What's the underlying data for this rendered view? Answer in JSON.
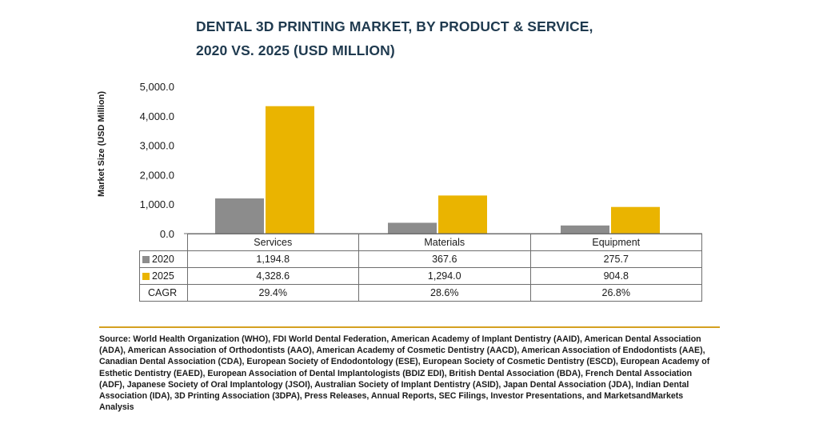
{
  "title_line1": "DENTAL 3D PRINTING MARKET, BY PRODUCT & SERVICE,",
  "title_line2": "2020 VS. 2025 (USD MILLION)",
  "colors": {
    "s2020": "#8c8c8c",
    "s2025": "#eab400"
  },
  "chart_data": {
    "type": "bar",
    "title": "DENTAL 3D PRINTING MARKET, BY PRODUCT & SERVICE, 2020 VS. 2025 (USD MILLION)",
    "ylabel": "Market Size (USD Million)",
    "xlabel": "",
    "categories": [
      "Services",
      "Materials",
      "Equipment"
    ],
    "series": [
      {
        "name": "2020",
        "values": [
          1194.8,
          367.6,
          275.7
        ]
      },
      {
        "name": "2025",
        "values": [
          4328.6,
          1294.0,
          904.8
        ]
      }
    ],
    "ylim": [
      0,
      5000
    ],
    "yticks": [
      "0.0",
      "1,000.0",
      "2,000.0",
      "3,000.0",
      "4,000.0",
      "5,000.0"
    ],
    "grid": false,
    "legend": "data table below chart"
  },
  "table": {
    "rows": [
      {
        "label": "2020",
        "cells": [
          "1,194.8",
          "367.6",
          "275.7"
        ]
      },
      {
        "label": "2025",
        "cells": [
          "4,328.6",
          "1,294.0",
          "904.8"
        ]
      },
      {
        "label": "CAGR",
        "cells": [
          "29.4%",
          "28.6%",
          "26.8%"
        ]
      }
    ]
  },
  "source": "Source: World Health Organization (WHO), FDI World Dental Federation, American Academy of Implant Dentistry (AAID), American Dental Association (ADA), American Association of Orthodontists (AAO), American Academy of Cosmetic Dentistry (AACD), American Association of Endodontists (AAE), Canadian Dental Association (CDA), European Society of Endodontology (ESE), European Society of Cosmetic Dentistry (ESCD), European Academy of Esthetic Dentistry (EAED), European Association of Dental Implantologists (BDIZ EDI), British Dental Association (BDA), French Dental Association (ADF), Japanese Society of Oral Implantology (JSOI), Australian Society of Implant Dentistry (ASID), Japan Dental Association (JDA), Indian Dental Association (IDA), 3D Printing Association (3DPA), Press Releases, Annual Reports, SEC Filings, Investor Presentations, and MarketsandMarkets Analysis"
}
